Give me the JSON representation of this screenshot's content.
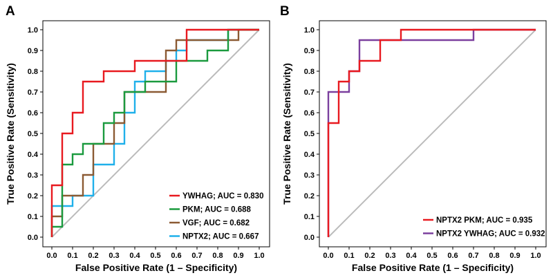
{
  "chart_data": [
    {
      "panel": "A",
      "type": "line",
      "xlabel": "False Positive Rate (1 – Specificity)",
      "ylabel": "True Positive Rate (Sensitivity)",
      "xlim": [
        0,
        1
      ],
      "ylim": [
        0,
        1
      ],
      "xticks": [
        "0.0",
        "0.1",
        "0.2",
        "0.3",
        "0.4",
        "0.5",
        "0.6",
        "0.7",
        "0.8",
        "0.9",
        "1.0"
      ],
      "yticks": [
        "0.0",
        "0.1",
        "0.2",
        "0.3",
        "0.4",
        "0.5",
        "0.6",
        "0.7",
        "0.8",
        "0.9",
        "1.0"
      ],
      "legend_position": "bottom-right",
      "diagonal_color": "#bbbbbb",
      "series": [
        {
          "name": "YWHAG; AUC = 0.830",
          "color": "#e8191f",
          "points": [
            [
              0,
              0
            ],
            [
              0,
              0.25
            ],
            [
              0.05,
              0.25
            ],
            [
              0.05,
              0.5
            ],
            [
              0.1,
              0.5
            ],
            [
              0.1,
              0.6
            ],
            [
              0.15,
              0.6
            ],
            [
              0.15,
              0.75
            ],
            [
              0.25,
              0.75
            ],
            [
              0.25,
              0.8
            ],
            [
              0.4,
              0.8
            ],
            [
              0.4,
              0.85
            ],
            [
              0.65,
              0.85
            ],
            [
              0.65,
              1
            ],
            [
              1,
              1
            ]
          ]
        },
        {
          "name": "PKM; AUC = 0.688",
          "color": "#1a9a3e",
          "points": [
            [
              0,
              0
            ],
            [
              0,
              0.05
            ],
            [
              0.05,
              0.05
            ],
            [
              0.05,
              0.35
            ],
            [
              0.1,
              0.35
            ],
            [
              0.1,
              0.4
            ],
            [
              0.15,
              0.4
            ],
            [
              0.15,
              0.45
            ],
            [
              0.25,
              0.45
            ],
            [
              0.25,
              0.55
            ],
            [
              0.3,
              0.55
            ],
            [
              0.3,
              0.6
            ],
            [
              0.35,
              0.6
            ],
            [
              0.35,
              0.7
            ],
            [
              0.45,
              0.7
            ],
            [
              0.45,
              0.75
            ],
            [
              0.6,
              0.75
            ],
            [
              0.6,
              0.85
            ],
            [
              0.75,
              0.85
            ],
            [
              0.75,
              0.9
            ],
            [
              0.85,
              0.9
            ],
            [
              0.85,
              1
            ],
            [
              1,
              1
            ]
          ]
        },
        {
          "name": "VGF; AUC = 0.682",
          "color": "#8b5a33",
          "points": [
            [
              0,
              0
            ],
            [
              0,
              0.1
            ],
            [
              0.05,
              0.1
            ],
            [
              0.05,
              0.2
            ],
            [
              0.15,
              0.2
            ],
            [
              0.15,
              0.3
            ],
            [
              0.2,
              0.3
            ],
            [
              0.2,
              0.45
            ],
            [
              0.3,
              0.45
            ],
            [
              0.3,
              0.55
            ],
            [
              0.35,
              0.55
            ],
            [
              0.35,
              0.7
            ],
            [
              0.55,
              0.7
            ],
            [
              0.55,
              0.9
            ],
            [
              0.6,
              0.9
            ],
            [
              0.6,
              0.95
            ],
            [
              0.9,
              0.95
            ],
            [
              0.9,
              1
            ],
            [
              1,
              1
            ]
          ]
        },
        {
          "name": "NPTX2; AUC = 0.667",
          "color": "#1fb0ea",
          "points": [
            [
              0,
              0
            ],
            [
              0,
              0.15
            ],
            [
              0.1,
              0.15
            ],
            [
              0.1,
              0.2
            ],
            [
              0.2,
              0.2
            ],
            [
              0.2,
              0.35
            ],
            [
              0.3,
              0.35
            ],
            [
              0.3,
              0.45
            ],
            [
              0.35,
              0.45
            ],
            [
              0.35,
              0.6
            ],
            [
              0.4,
              0.6
            ],
            [
              0.4,
              0.75
            ],
            [
              0.45,
              0.75
            ],
            [
              0.45,
              0.8
            ],
            [
              0.55,
              0.8
            ],
            [
              0.55,
              0.85
            ],
            [
              0.6,
              0.85
            ],
            [
              0.6,
              0.9
            ],
            [
              0.65,
              0.9
            ],
            [
              0.65,
              0.95
            ],
            [
              0.85,
              0.95
            ],
            [
              0.85,
              1
            ],
            [
              1,
              1
            ]
          ]
        }
      ]
    },
    {
      "panel": "B",
      "type": "line",
      "xlabel": "False Positive Rate (1 – Specificity)",
      "ylabel": "True Positive Rate (Sensitivity)",
      "xlim": [
        0,
        1
      ],
      "ylim": [
        0,
        1
      ],
      "xticks": [
        "0.0",
        "0.1",
        "0.2",
        "0.3",
        "0.4",
        "0.5",
        "0.6",
        "0.7",
        "0.8",
        "0.9",
        "1.0"
      ],
      "yticks": [
        "0.0",
        "0.1",
        "0.2",
        "0.3",
        "0.4",
        "0.5",
        "0.6",
        "0.7",
        "0.8",
        "0.9",
        "1.0"
      ],
      "legend_position": "bottom-right",
      "diagonal_color": "#bbbbbb",
      "series": [
        {
          "name": "NPTX2 PKM; AUC = 0.935",
          "color": "#e8191f",
          "points": [
            [
              0,
              0
            ],
            [
              0,
              0.55
            ],
            [
              0.05,
              0.55
            ],
            [
              0.05,
              0.75
            ],
            [
              0.1,
              0.75
            ],
            [
              0.1,
              0.8
            ],
            [
              0.15,
              0.8
            ],
            [
              0.15,
              0.85
            ],
            [
              0.25,
              0.85
            ],
            [
              0.25,
              0.95
            ],
            [
              0.35,
              0.95
            ],
            [
              0.35,
              1
            ],
            [
              1,
              1
            ]
          ]
        },
        {
          "name": "NPTX2 YWHAG; AUC = 0.932",
          "color": "#7b3f9e",
          "points": [
            [
              0,
              0
            ],
            [
              0,
              0.7
            ],
            [
              0.1,
              0.7
            ],
            [
              0.1,
              0.8
            ],
            [
              0.15,
              0.8
            ],
            [
              0.15,
              0.95
            ],
            [
              0.7,
              0.95
            ],
            [
              0.7,
              1
            ],
            [
              1,
              1
            ]
          ]
        }
      ]
    }
  ]
}
